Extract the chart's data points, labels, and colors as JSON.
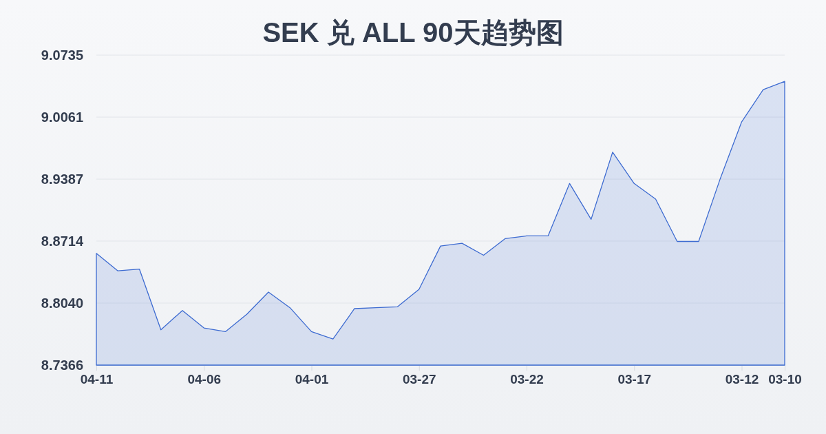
{
  "chart_data": {
    "type": "area",
    "title": "SEK 兑 ALL 90天趋势图",
    "categories": [
      "04-11",
      null,
      null,
      null,
      null,
      "04-06",
      null,
      null,
      null,
      null,
      "04-01",
      null,
      null,
      null,
      null,
      "03-27",
      null,
      null,
      null,
      null,
      "03-22",
      null,
      null,
      null,
      null,
      "03-17",
      null,
      null,
      null,
      null,
      "03-12",
      null,
      "03-10"
    ],
    "values": [
      8.858,
      8.839,
      8.841,
      8.775,
      8.796,
      8.777,
      8.773,
      8.792,
      8.816,
      8.799,
      8.773,
      8.765,
      8.798,
      8.799,
      8.8,
      8.819,
      8.866,
      8.869,
      8.856,
      8.874,
      8.877,
      8.877,
      8.934,
      8.895,
      8.968,
      8.934,
      8.917,
      8.871,
      8.871,
      8.939,
      9.001,
      9.036,
      9.045
    ],
    "color": "#3d6bd1",
    "ylim": [
      8.7366,
      9.0735
    ],
    "yticks": [
      8.7366,
      {
        "value": 8.804,
        "label": "8.8040"
      },
      8.8714,
      8.9387,
      9.0061,
      9.0735
    ],
    "grid": "y"
  }
}
